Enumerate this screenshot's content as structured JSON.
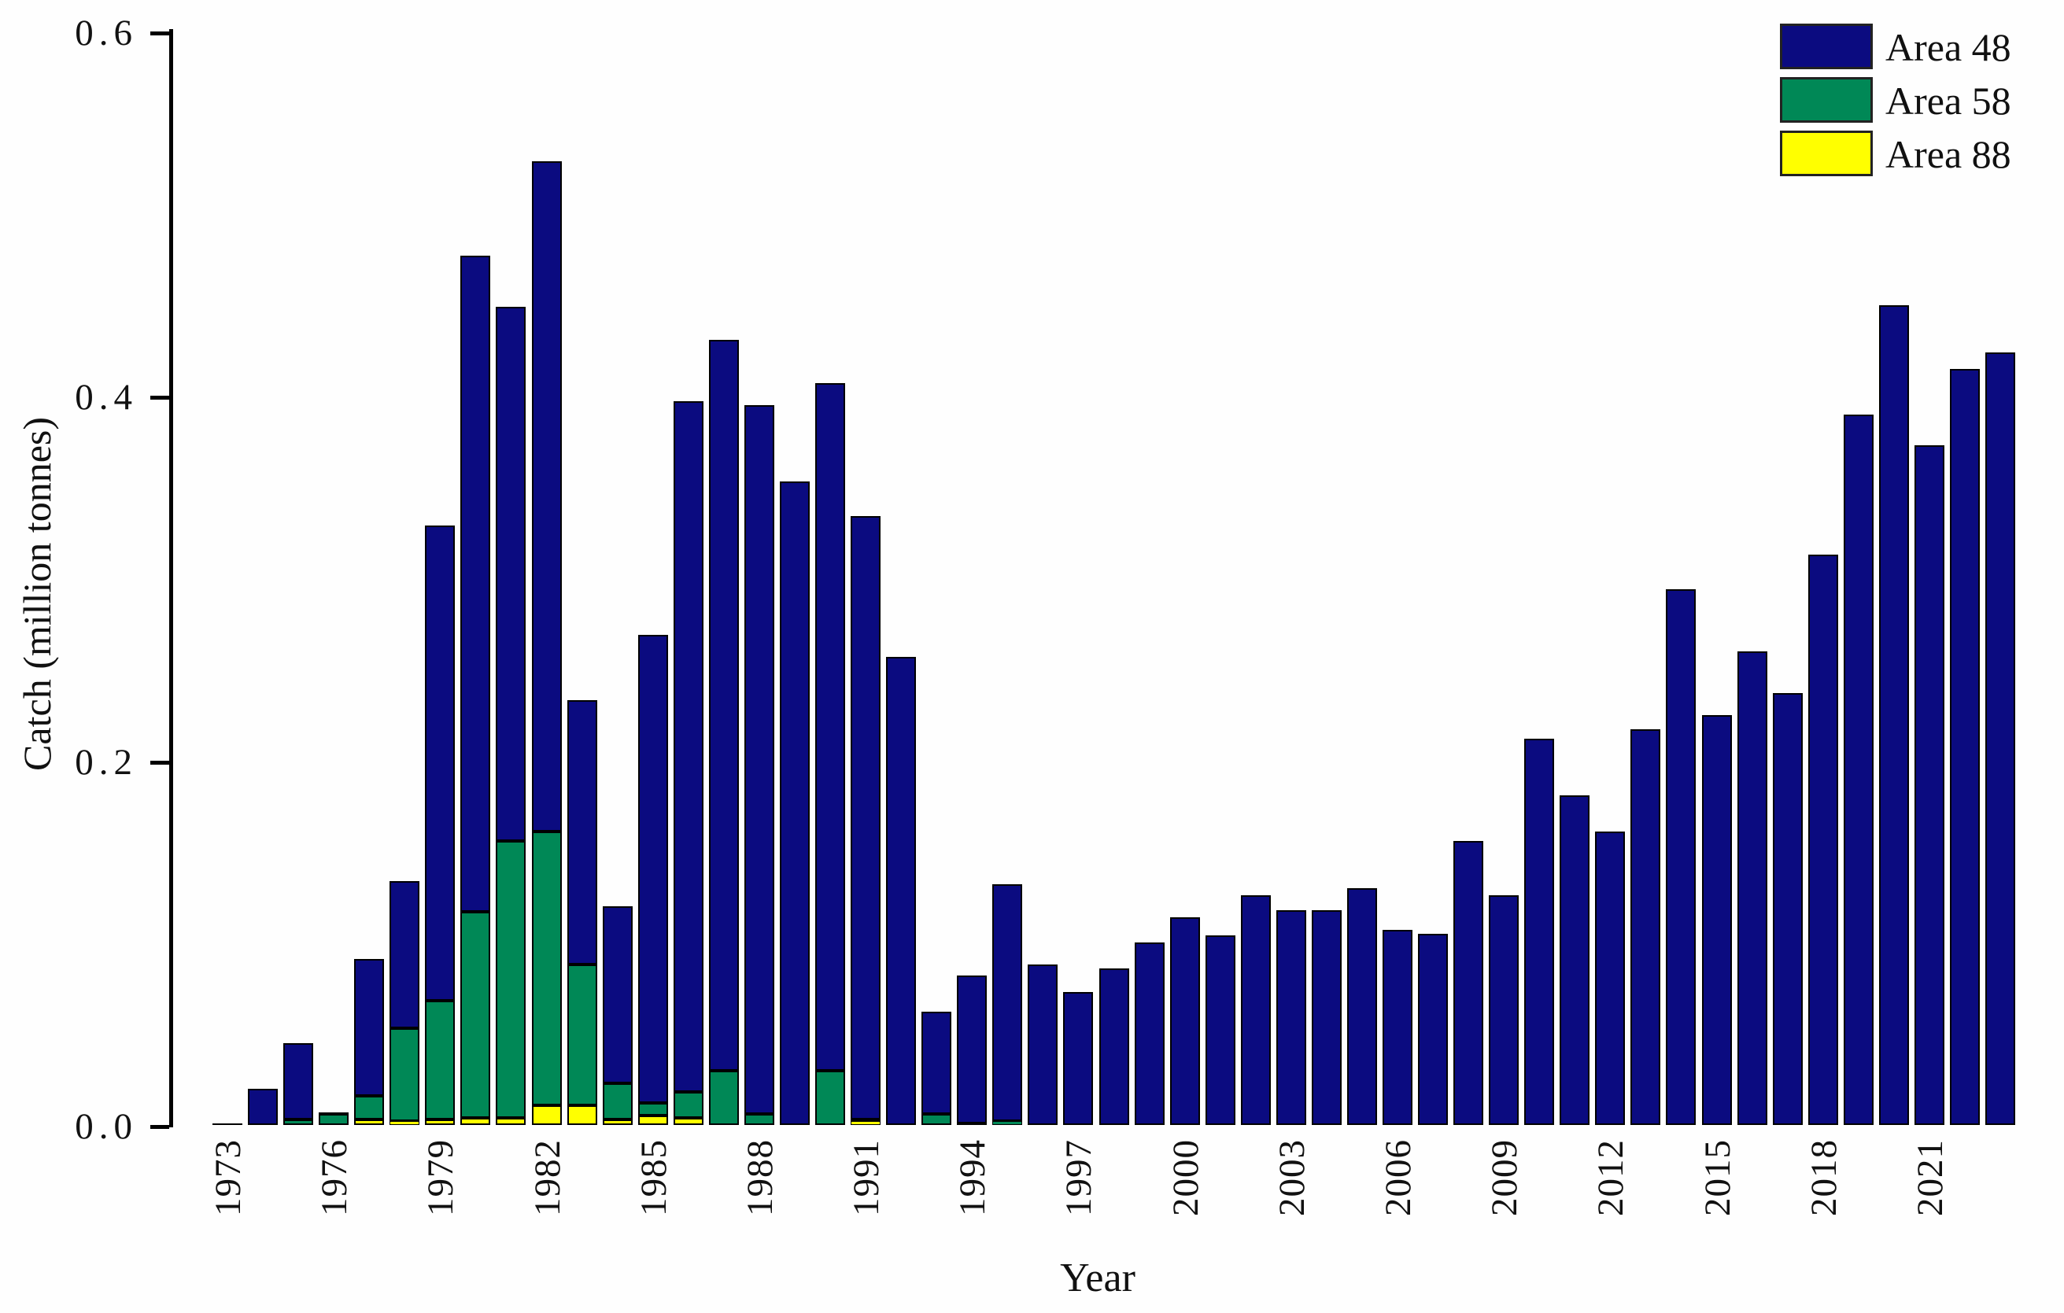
{
  "figure": {
    "y_axis_title": "Catch (million tonnes)",
    "x_axis_title": "Year",
    "background_color": "#fefefe",
    "axis_color": "#000000",
    "y_ticks": [
      {
        "label": "0.0",
        "value": 0.0
      },
      {
        "label": "0.2",
        "value": 0.2
      },
      {
        "label": "0.4",
        "value": 0.4
      },
      {
        "label": "0.6",
        "value": 0.6
      }
    ],
    "x_tick_years": [
      1973,
      1976,
      1979,
      1982,
      1985,
      1988,
      1991,
      1994,
      1997,
      2000,
      2003,
      2006,
      2009,
      2012,
      2015,
      2018,
      2021
    ]
  },
  "legend": {
    "items": [
      {
        "label": "Area 48",
        "color": "#0b0b80"
      },
      {
        "label": "Area 58",
        "color": "#008856"
      },
      {
        "label": "Area 88",
        "color": "#ffff00"
      }
    ]
  },
  "chart_data": {
    "type": "bar",
    "stacked": true,
    "stack_order_bottom_to_top": [
      "Area 88",
      "Area 58",
      "Area 48"
    ],
    "title": "",
    "xlabel": "Year",
    "ylabel": "Catch (million tonnes)",
    "ylim": [
      0,
      0.6
    ],
    "grid": false,
    "legend_position": "top-right",
    "x": [
      1973,
      1974,
      1975,
      1976,
      1977,
      1978,
      1979,
      1980,
      1981,
      1982,
      1983,
      1984,
      1985,
      1986,
      1987,
      1988,
      1989,
      1990,
      1991,
      1992,
      1993,
      1994,
      1995,
      1996,
      1997,
      1998,
      1999,
      2000,
      2001,
      2002,
      2003,
      2004,
      2005,
      2006,
      2007,
      2008,
      2009,
      2010,
      2011,
      2012,
      2013,
      2014,
      2015,
      2016,
      2017,
      2018,
      2019,
      2020,
      2021,
      2022,
      2023
    ],
    "series": [
      {
        "name": "Area 48",
        "color": "#0b0b80",
        "values": [
          0.001,
          0.02,
          0.042,
          0.001,
          0.075,
          0.081,
          0.261,
          0.36,
          0.293,
          0.368,
          0.145,
          0.097,
          0.257,
          0.379,
          0.401,
          0.389,
          0.353,
          0.377,
          0.331,
          0.257,
          0.056,
          0.081,
          0.13,
          0.088,
          0.073,
          0.086,
          0.1,
          0.114,
          0.104,
          0.126,
          0.118,
          0.118,
          0.13,
          0.107,
          0.105,
          0.156,
          0.126,
          0.212,
          0.181,
          0.161,
          0.217,
          0.294,
          0.225,
          0.26,
          0.237,
          0.313,
          0.39,
          0.45,
          0.373,
          0.415,
          0.424
        ]
      },
      {
        "name": "Area 58",
        "color": "#008856",
        "values": [
          0,
          0,
          0.003,
          0.006,
          0.013,
          0.051,
          0.065,
          0.113,
          0.152,
          0.15,
          0.077,
          0.02,
          0.007,
          0.014,
          0.03,
          0.006,
          0,
          0.03,
          0.001,
          0,
          0.006,
          0.001,
          0.002,
          0,
          0,
          0,
          0,
          0,
          0,
          0,
          0,
          0,
          0,
          0,
          0,
          0,
          0,
          0,
          0,
          0,
          0,
          0,
          0,
          0,
          0,
          0,
          0,
          0,
          0,
          0,
          0
        ]
      },
      {
        "name": "Area 88",
        "color": "#ffff00",
        "values": [
          0,
          0,
          0,
          0,
          0.003,
          0.002,
          0.003,
          0.004,
          0.004,
          0.011,
          0.011,
          0.003,
          0.005,
          0.004,
          0,
          0,
          0,
          0,
          0.002,
          0,
          0,
          0,
          0,
          0,
          0,
          0,
          0,
          0,
          0,
          0,
          0,
          0,
          0,
          0,
          0,
          0,
          0,
          0,
          0,
          0,
          0,
          0,
          0,
          0,
          0,
          0,
          0,
          0,
          0,
          0,
          0
        ]
      }
    ]
  }
}
